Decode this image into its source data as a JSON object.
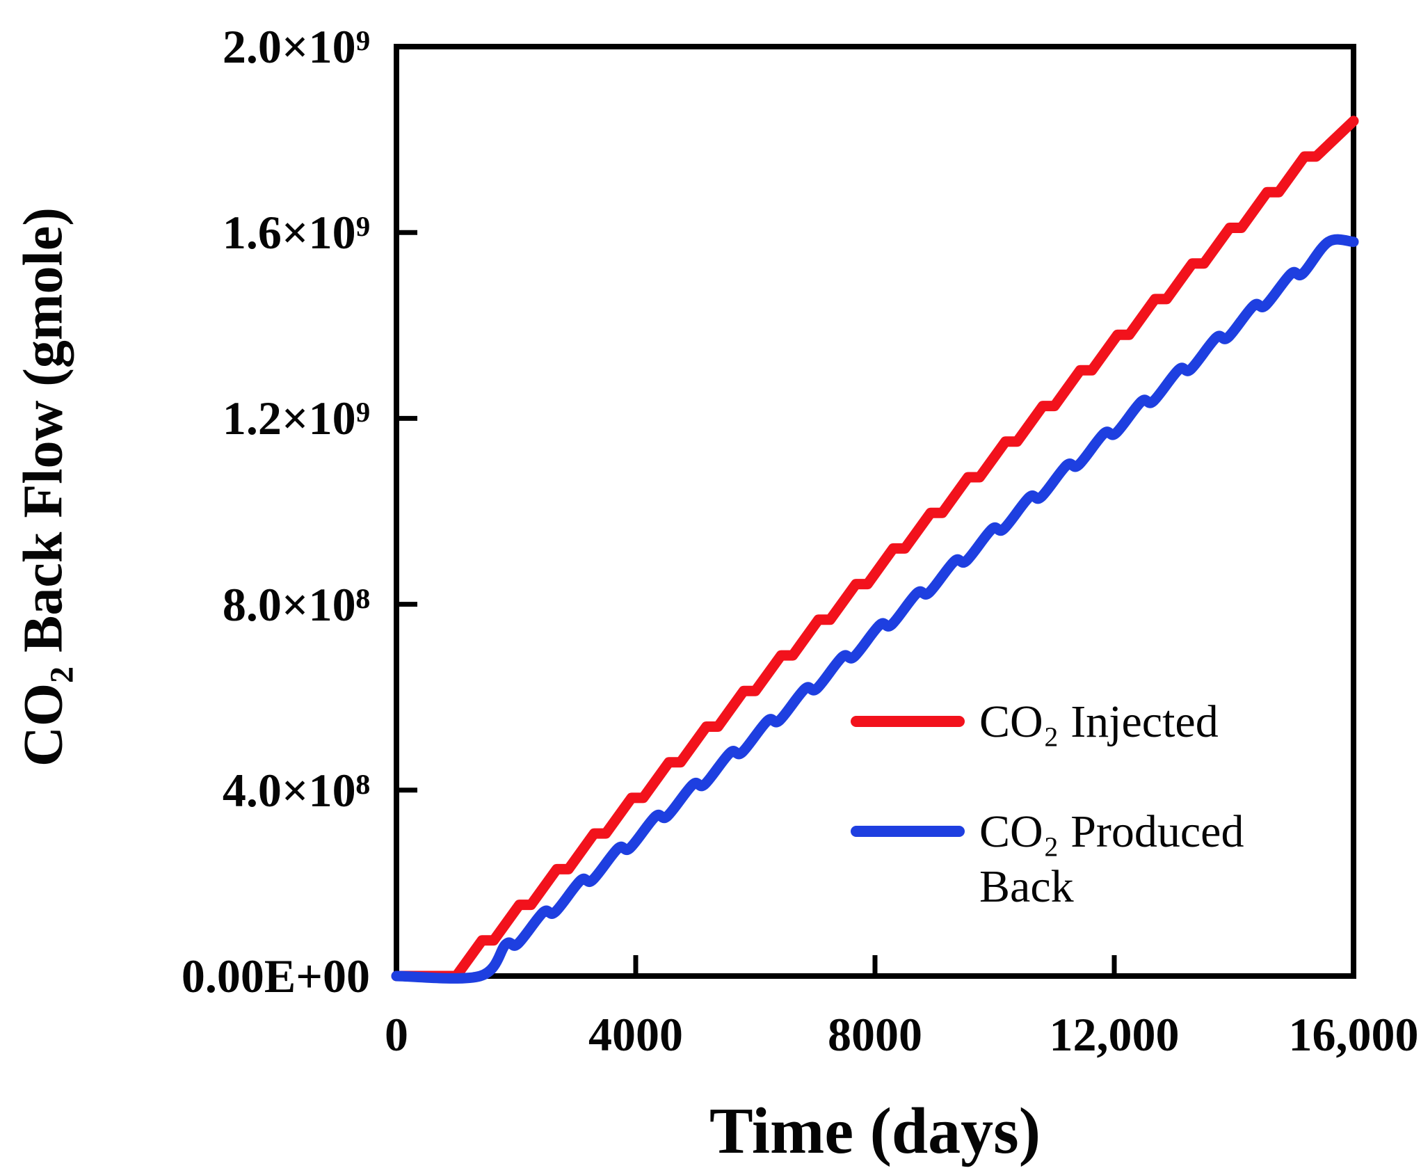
{
  "chart_data": {
    "type": "line",
    "title": "",
    "xlabel": "Time (days)",
    "ylabel": "CO₂ Back Flow (gmole)",
    "xlim": [
      0,
      16000
    ],
    "ylim": [
      0,
      2000000000.0
    ],
    "grid": false,
    "legend_position": "inside-middle-right",
    "x_ticks": [
      0,
      4000,
      8000,
      12000,
      16000
    ],
    "x_tick_labels": [
      "0",
      "4000",
      "8000",
      "12,000",
      "16,000"
    ],
    "y_ticks": [
      2000000000.0,
      1600000000.0,
      1200000000.0,
      800000000.0,
      400000000.0,
      0
    ],
    "y_tick_labels": [
      "2.0×10⁹",
      "1.6×10⁹",
      "1.2×10⁹",
      "8.0×10⁸",
      "4.0×10⁸",
      "0.00E+00"
    ],
    "series": [
      {
        "name": "CO₂ Injected",
        "color": "#f2121c",
        "line_style": "stepped-sharp",
        "smooth": false,
        "points": [
          [
            0,
            0
          ],
          [
            1000,
            0
          ],
          [
            1430,
            76700000.0
          ],
          [
            1625,
            76700000.0
          ],
          [
            2055,
            153300000.0
          ],
          [
            2250,
            153300000.0
          ],
          [
            2680,
            230000000.0
          ],
          [
            2875,
            230000000.0
          ],
          [
            3305,
            306700000.0
          ],
          [
            3500,
            306700000.0
          ],
          [
            3930,
            383400000.0
          ],
          [
            4125,
            383400000.0
          ],
          [
            4555,
            460000000.0
          ],
          [
            4750,
            460000000.0
          ],
          [
            5180,
            536700000.0
          ],
          [
            5375,
            536700000.0
          ],
          [
            5805,
            613400000.0
          ],
          [
            6000,
            613400000.0
          ],
          [
            6430,
            690000000.0
          ],
          [
            6625,
            690000000.0
          ],
          [
            7055,
            766700000.0
          ],
          [
            7250,
            766700000.0
          ],
          [
            7680,
            843400000.0
          ],
          [
            7875,
            843400000.0
          ],
          [
            8305,
            920000000.0
          ],
          [
            8500,
            920000000.0
          ],
          [
            8930,
            996700000.0
          ],
          [
            9125,
            996700000.0
          ],
          [
            9555,
            1073400000.0
          ],
          [
            9750,
            1073400000.0
          ],
          [
            10180,
            1150000000.0
          ],
          [
            10375,
            1150000000.0
          ],
          [
            10805,
            1226700000.0
          ],
          [
            11000,
            1226700000.0
          ],
          [
            11430,
            1303400000.0
          ],
          [
            11625,
            1303400000.0
          ],
          [
            12055,
            1380000000.0
          ],
          [
            12250,
            1380000000.0
          ],
          [
            12680,
            1456700000.0
          ],
          [
            12875,
            1456700000.0
          ],
          [
            13305,
            1533400000.0
          ],
          [
            13500,
            1533400000.0
          ],
          [
            13930,
            1610000000.0
          ],
          [
            14125,
            1610000000.0
          ],
          [
            14555,
            1686700000.0
          ],
          [
            14750,
            1686700000.0
          ],
          [
            15180,
            1763400000.0
          ],
          [
            15375,
            1763400000.0
          ],
          [
            16000,
            1840000000.0
          ]
        ]
      },
      {
        "name": "CO₂ Produced Back",
        "color": "#1e3fe0",
        "line_style": "stepped-rounded",
        "smooth": true,
        "points": [
          [
            0,
            0
          ],
          [
            1400,
            0
          ],
          [
            1830,
            68700000.0
          ],
          [
            2025,
            68700000.0
          ],
          [
            2455,
            137400000.0
          ],
          [
            2650,
            137400000.0
          ],
          [
            3080,
            206100000.0
          ],
          [
            3275,
            206100000.0
          ],
          [
            3705,
            274800000.0
          ],
          [
            3900,
            274800000.0
          ],
          [
            4330,
            343500000.0
          ],
          [
            4525,
            343500000.0
          ],
          [
            4955,
            412200000.0
          ],
          [
            5150,
            412200000.0
          ],
          [
            5580,
            480900000.0
          ],
          [
            5775,
            480900000.0
          ],
          [
            6205,
            549600000.0
          ],
          [
            6400,
            549600000.0
          ],
          [
            6830,
            618300000.0
          ],
          [
            7025,
            618300000.0
          ],
          [
            7455,
            687000000.0
          ],
          [
            7650,
            687000000.0
          ],
          [
            8080,
            755700000.0
          ],
          [
            8275,
            755700000.0
          ],
          [
            8705,
            824400000.0
          ],
          [
            8900,
            824400000.0
          ],
          [
            9330,
            893100000.0
          ],
          [
            9525,
            893100000.0
          ],
          [
            9955,
            961800000.0
          ],
          [
            10150,
            961800000.0
          ],
          [
            10580,
            1030500000.0
          ],
          [
            10775,
            1030500000.0
          ],
          [
            11205,
            1099200000.0
          ],
          [
            11400,
            1099200000.0
          ],
          [
            11830,
            1167900000.0
          ],
          [
            12025,
            1167900000.0
          ],
          [
            12455,
            1236600000.0
          ],
          [
            12650,
            1236600000.0
          ],
          [
            13080,
            1305300000.0
          ],
          [
            13275,
            1305300000.0
          ],
          [
            13705,
            1374000000.0
          ],
          [
            13900,
            1374000000.0
          ],
          [
            14330,
            1442700000.0
          ],
          [
            14525,
            1442700000.0
          ],
          [
            14955,
            1511400000.0
          ],
          [
            15150,
            1511400000.0
          ],
          [
            15580,
            1580000000.0
          ],
          [
            16000,
            1580000000.0
          ]
        ]
      }
    ]
  }
}
